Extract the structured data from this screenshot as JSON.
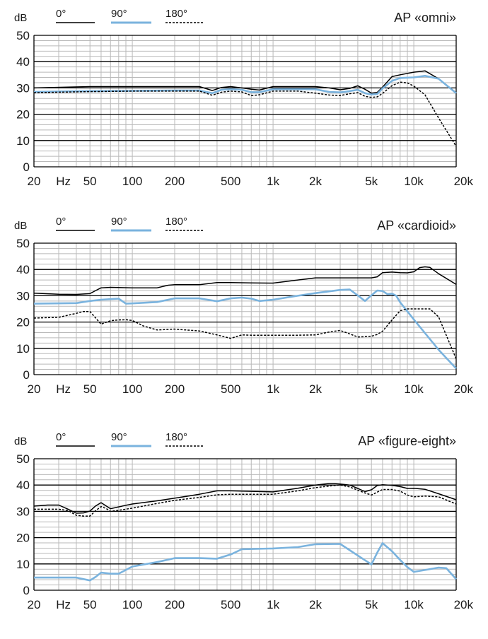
{
  "colors": {
    "deg0": "#000000",
    "deg90": "#7ab3de",
    "deg180": "#000000",
    "grid": "#b9b9b9",
    "frame": "#000000"
  },
  "chart_data": [
    {
      "type": "line",
      "title": "AP «omni»",
      "ylabel": "dB",
      "xunit": "Hz",
      "xscale": "log",
      "xlim": [
        20,
        20000
      ],
      "ylim": [
        0,
        50
      ],
      "yticks": [
        0,
        10,
        20,
        30,
        40,
        50
      ],
      "xtick_values": [
        20,
        50,
        100,
        200,
        500,
        1000,
        2000,
        5000,
        10000,
        20000
      ],
      "xtick_labels": [
        "20",
        "50",
        "100",
        "200",
        "500",
        "1k",
        "2k",
        "5k",
        "10k",
        "20k"
      ],
      "grid": true,
      "legend_position": "top-left",
      "series": [
        {
          "name": "0°",
          "style": "solid",
          "x": [
            20,
            50,
            100,
            200,
            300,
            370,
            430,
            500,
            600,
            700,
            800,
            1000,
            1500,
            2000,
            2500,
            3000,
            3500,
            4000,
            4500,
            5000,
            5500,
            6000,
            7000,
            8000,
            10000,
            12000,
            15000,
            20000
          ],
          "y": [
            30,
            30.5,
            30.5,
            30.5,
            30.5,
            29,
            30.2,
            30.5,
            30,
            29.5,
            29.2,
            30.5,
            30.5,
            30.5,
            30,
            29.3,
            29.8,
            30.8,
            29.5,
            28,
            28.3,
            30.3,
            34.3,
            35,
            36,
            36.5,
            33.5,
            28.2
          ]
        },
        {
          "name": "90°",
          "style": "solid",
          "x": [
            20,
            50,
            100,
            200,
            300,
            370,
            430,
            500,
            600,
            700,
            800,
            1000,
            1500,
            2000,
            2500,
            3000,
            3500,
            4000,
            4500,
            5000,
            5500,
            6000,
            7000,
            8000,
            10000,
            12000,
            15000,
            20000
          ],
          "y": [
            28.5,
            28.8,
            28.9,
            29,
            29,
            28,
            29.3,
            29.5,
            29.3,
            28.4,
            28.4,
            29.5,
            29.5,
            29.5,
            28.5,
            28.3,
            28.8,
            29.3,
            28,
            27.5,
            27.7,
            29.8,
            32.7,
            33.8,
            34,
            34.6,
            33.5,
            28
          ]
        },
        {
          "name": "180°",
          "style": "dashed",
          "x": [
            20,
            50,
            100,
            200,
            300,
            370,
            430,
            500,
            600,
            700,
            800,
            1000,
            1500,
            2000,
            2500,
            3000,
            3500,
            4000,
            4500,
            5000,
            5500,
            6000,
            7000,
            8000,
            9000,
            10000,
            12000,
            15000,
            20000
          ],
          "y": [
            28.2,
            28.6,
            28.8,
            28.8,
            28.8,
            27.2,
            28.4,
            28.8,
            28.5,
            27.1,
            27.4,
            28.8,
            28.8,
            28,
            27.3,
            27.1,
            27.8,
            28.2,
            26.8,
            26.4,
            26.6,
            27.9,
            30.9,
            32.2,
            31.9,
            30.7,
            27.4,
            18.6,
            7.8
          ]
        }
      ]
    },
    {
      "type": "line",
      "title": "AP «cardioid»",
      "ylabel": "dB",
      "xunit": "Hz",
      "xscale": "log",
      "xlim": [
        20,
        20000
      ],
      "ylim": [
        0,
        50
      ],
      "yticks": [
        0,
        10,
        20,
        30,
        40,
        50
      ],
      "xtick_values": [
        20,
        50,
        100,
        200,
        500,
        1000,
        2000,
        5000,
        10000,
        20000
      ],
      "xtick_labels": [
        "20",
        "50",
        "100",
        "200",
        "500",
        "1k",
        "2k",
        "5k",
        "10k",
        "20k"
      ],
      "grid": true,
      "legend_position": "top-left",
      "series": [
        {
          "name": "0°",
          "style": "solid",
          "x": [
            20,
            30,
            40,
            50,
            55,
            60,
            70,
            100,
            150,
            180,
            200,
            300,
            400,
            500,
            700,
            1000,
            1500,
            2000,
            3000,
            4000,
            5000,
            5500,
            6000,
            7000,
            8000,
            9000,
            10000,
            11000,
            12000,
            13000,
            15000,
            20000
          ],
          "y": [
            31,
            30.6,
            30.5,
            30.8,
            32,
            33,
            33.2,
            33,
            33,
            34,
            34.2,
            34.2,
            35,
            35,
            34.9,
            34.8,
            36,
            36.8,
            36.8,
            36.8,
            36.8,
            37.2,
            38.8,
            39,
            38.8,
            38.7,
            39.1,
            40.7,
            41,
            40.8,
            38.4,
            34.3
          ]
        },
        {
          "name": "90°",
          "style": "solid",
          "x": [
            20,
            40,
            50,
            60,
            70,
            80,
            90,
            100,
            150,
            200,
            300,
            400,
            500,
            600,
            700,
            800,
            1000,
            1500,
            2000,
            3000,
            3500,
            4000,
            4500,
            5000,
            5500,
            6000,
            6500,
            7000,
            7500,
            8000,
            10000,
            15000,
            20000
          ],
          "y": [
            27,
            27.2,
            28,
            28.5,
            28.7,
            28.9,
            27,
            27.1,
            27.6,
            29,
            29,
            27.9,
            29,
            29.3,
            28.9,
            28,
            28.5,
            30,
            31,
            32.2,
            32.4,
            30.1,
            28,
            30.2,
            32,
            31.8,
            30.6,
            30.8,
            30,
            27.5,
            21,
            9.5,
            2.3
          ]
        },
        {
          "name": "180°",
          "style": "dashed",
          "x": [
            20,
            30,
            40,
            45,
            50,
            55,
            60,
            70,
            80,
            90,
            100,
            120,
            150,
            200,
            300,
            400,
            500,
            600,
            700,
            800,
            1000,
            1500,
            2000,
            2500,
            3000,
            3500,
            4000,
            5000,
            5500,
            6000,
            7000,
            8000,
            9000,
            10000,
            12000,
            13000,
            15000,
            20000
          ],
          "y": [
            21.5,
            21.8,
            23.3,
            24,
            24,
            21.5,
            19.2,
            20.5,
            20.8,
            20.9,
            20.6,
            18.5,
            17,
            17.3,
            16.6,
            15.1,
            13.8,
            15.1,
            15,
            15,
            15,
            15,
            15.1,
            16.2,
            16.8,
            15.5,
            14.3,
            14.6,
            15.3,
            16.5,
            20.8,
            24.3,
            25,
            25,
            25,
            25,
            22,
            6
          ]
        }
      ]
    },
    {
      "type": "line",
      "title": "AP «figure-eight»",
      "ylabel": "dB",
      "xunit": "Hz",
      "xscale": "log",
      "xlim": [
        20,
        20000
      ],
      "ylim": [
        0,
        50
      ],
      "yticks": [
        0,
        10,
        20,
        30,
        40,
        50
      ],
      "xtick_values": [
        20,
        50,
        100,
        200,
        500,
        1000,
        2000,
        5000,
        10000,
        20000
      ],
      "xtick_labels": [
        "20",
        "50",
        "100",
        "200",
        "500",
        "1k",
        "2k",
        "5k",
        "10k",
        "20k"
      ],
      "grid": true,
      "legend_position": "top-left",
      "series": [
        {
          "name": "0°",
          "style": "solid",
          "x": [
            20,
            25,
            30,
            35,
            40,
            45,
            50,
            55,
            60,
            65,
            70,
            80,
            90,
            100,
            150,
            200,
            300,
            400,
            500,
            700,
            1000,
            1500,
            2000,
            2500,
            2700,
            3000,
            3500,
            4000,
            4500,
            5000,
            5500,
            6000,
            7000,
            8000,
            9000,
            10000,
            12000,
            15000,
            20000
          ],
          "y": [
            32,
            32.4,
            32.4,
            30.8,
            29.3,
            29.4,
            30.1,
            32.1,
            33.3,
            32.1,
            31,
            31.7,
            32.3,
            32.8,
            34,
            35,
            36.5,
            37.8,
            37.8,
            37.6,
            37.4,
            38.8,
            40,
            40.6,
            40.6,
            40.4,
            40,
            38.7,
            37.5,
            38.2,
            39.8,
            40.1,
            39.9,
            39.4,
            38.7,
            38.8,
            38.4,
            36.7,
            34.4
          ]
        },
        {
          "name": "90°",
          "style": "solid",
          "x": [
            20,
            30,
            40,
            50,
            55,
            60,
            70,
            80,
            100,
            150,
            200,
            300,
            400,
            500,
            600,
            1000,
            1500,
            2000,
            3000,
            4500,
            5000,
            5500,
            6000,
            7000,
            8000,
            9000,
            10000,
            12000,
            15000,
            17000,
            20000
          ],
          "y": [
            4.8,
            4.8,
            4.8,
            3.7,
            5.1,
            6.7,
            6.3,
            6.3,
            9,
            10.7,
            12.2,
            12.2,
            12,
            13.6,
            15.6,
            15.9,
            16.4,
            17.5,
            17.6,
            11.4,
            9.8,
            14.3,
            17.9,
            14.8,
            11.5,
            8.8,
            7,
            7.7,
            8.6,
            8.4,
            4.2
          ]
        },
        {
          "name": "180°",
          "style": "dashed",
          "x": [
            20,
            30,
            35,
            40,
            45,
            50,
            55,
            60,
            65,
            70,
            80,
            100,
            150,
            200,
            300,
            400,
            500,
            700,
            1000,
            1500,
            2000,
            2500,
            2700,
            3000,
            3500,
            4000,
            4500,
            5000,
            6000,
            7000,
            8000,
            9000,
            10000,
            12000,
            15000,
            20000
          ],
          "y": [
            30.8,
            30.8,
            30.3,
            28.5,
            28.2,
            28.2,
            30.3,
            31.8,
            31.1,
            30,
            30.4,
            31.2,
            33,
            34.2,
            35.3,
            36.3,
            36.5,
            36.5,
            36.5,
            37.8,
            39,
            39.6,
            39.8,
            40,
            39.3,
            38,
            37,
            36.2,
            38.3,
            38.3,
            37.7,
            36.2,
            35.5,
            35.8,
            35.5,
            32.8
          ]
        }
      ]
    }
  ]
}
